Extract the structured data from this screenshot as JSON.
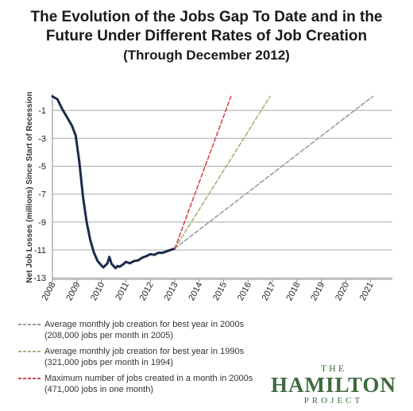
{
  "header": {
    "title_line1": "The Evolution of the Jobs Gap To Date and in the",
    "title_line2": "Future Under Different Rates of Job Creation",
    "subtitle": "(Through December 2012)"
  },
  "chart_data": {
    "type": "line",
    "title": "The Evolution of the Jobs Gap To Date and in the Future Under Different Rates of Job Creation",
    "subtitle": "(Through December 2012)",
    "ylabel": "Net Job Losses (millions) Since Start of Recession",
    "xlabel": "",
    "xlim": [
      2008,
      2021.9
    ],
    "ylim": [
      -13.1,
      0.2
    ],
    "x_ticks": [
      "2008",
      "2009",
      "2010",
      "2011",
      "2012",
      "2013",
      "2014",
      "2015",
      "2016",
      "2017",
      "2018",
      "2019",
      "2020",
      "2021"
    ],
    "y_ticks": [
      "-1",
      "-3",
      "-5",
      "-7",
      "-9",
      "-11",
      "-13"
    ],
    "y_tick_values": [
      -1,
      -3,
      -5,
      -7,
      -9,
      -11,
      -13
    ],
    "grid": true,
    "legend_position": "bottom-left",
    "series": [
      {
        "color": "#1c2a4a",
        "style": "solid",
        "x": [
          2008.0,
          2008.2,
          2008.4,
          2008.6,
          2008.8,
          2008.95,
          2009.1,
          2009.25,
          2009.4,
          2009.55,
          2009.7,
          2009.85,
          2010.0,
          2010.08,
          2010.17,
          2010.25,
          2010.33,
          2010.42,
          2010.5,
          2010.58,
          2010.67,
          2010.75,
          2010.83,
          2010.92,
          2011.0,
          2011.17,
          2011.33,
          2011.5,
          2011.67,
          2011.83,
          2012.0,
          2012.17,
          2012.33,
          2012.5,
          2012.67,
          2012.83,
          2013.0
        ],
        "y": [
          0.0,
          -0.2,
          -0.9,
          -1.5,
          -2.1,
          -2.8,
          -4.7,
          -7.2,
          -9.0,
          -10.3,
          -11.2,
          -11.8,
          -12.1,
          -12.25,
          -12.1,
          -11.95,
          -11.5,
          -12.0,
          -12.15,
          -12.3,
          -12.15,
          -12.2,
          -12.1,
          -12.0,
          -11.85,
          -11.95,
          -11.8,
          -11.75,
          -11.55,
          -11.45,
          -11.3,
          -11.35,
          -11.2,
          -11.2,
          -11.1,
          -11.0,
          -10.9
        ]
      },
      {
        "name": "Average monthly job creation for best year in 2000s",
        "color": "#9a9aaa",
        "style": "dashed",
        "x": [
          2013.0,
          2021.1
        ],
        "y": [
          -10.9,
          0.0
        ]
      },
      {
        "name": "Average monthly job creation for best year in 1990s",
        "color": "#a3b37a",
        "style": "dashed",
        "x": [
          2013.0,
          2016.9
        ],
        "y": [
          -10.9,
          0.0
        ]
      },
      {
        "name": "Maximum number of jobs created in a month  in 2000s",
        "color": "#d9474f",
        "style": "dashed",
        "x": [
          2013.0,
          2015.3
        ],
        "y": [
          -10.9,
          0.0
        ]
      }
    ]
  },
  "legend": [
    {
      "line1": "Average monthly job creation for best year in 2000s",
      "line2": "(208,000 jobs per month in 2005)",
      "color": "#9a9aaa"
    },
    {
      "line1": "Average monthly job creation for best year in 1990s",
      "line2": "(321,000 jobs per month in 1994)",
      "color": "#a3b37a"
    },
    {
      "line1": "Maximum number of jobs created in a month  in 2000s",
      "line2": "(471,000 jobs in one month)",
      "color": "#d9474f"
    }
  ],
  "logo": {
    "line1": "THE",
    "line2": "HAMILTON",
    "line3": "PROJECT"
  }
}
